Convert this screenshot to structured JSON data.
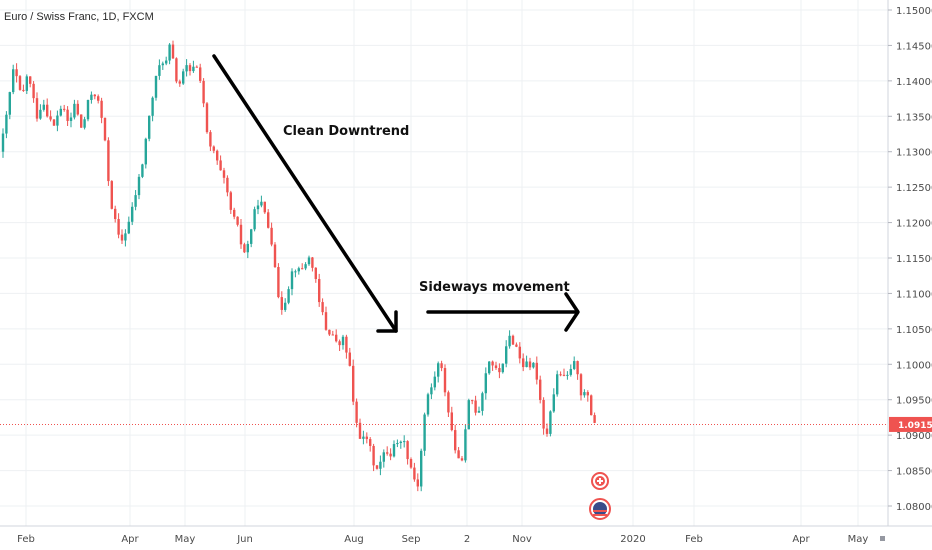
{
  "chart_data": {
    "type": "candlestick",
    "title": "Euro / Swiss Franc, 1D, FXCM",
    "y_ticks": [
      "1.15000",
      "1.14500",
      "1.14000",
      "1.13500",
      "1.13000",
      "1.12500",
      "1.12000",
      "1.11500",
      "1.11000",
      "1.10500",
      "1.10000",
      "1.09500",
      "1.09000",
      "1.08500",
      "1.08000"
    ],
    "ylim": [
      1.0775,
      1.1515
    ],
    "x_ticks": [
      "Feb",
      "Apr",
      "May",
      "Jun",
      "Aug",
      "Sep",
      "2",
      "Nov",
      "2020",
      "Feb",
      "Apr",
      "May"
    ],
    "current_price": "1.09151",
    "annotations": [
      "Clean Downtrend",
      "Sideways movement"
    ],
    "grid": true,
    "colors": {
      "up": "#26a69a",
      "down": "#ef5350",
      "price_line": "#ef5350",
      "grid": "#eef0f3",
      "axis": "#d1d4dc"
    },
    "close_path": [
      [
        0,
        1.13
      ],
      [
        5,
        1.1335
      ],
      [
        10,
        1.1385
      ],
      [
        14,
        1.142
      ],
      [
        18,
        1.1395
      ],
      [
        22,
        1.137
      ],
      [
        26,
        1.141
      ],
      [
        30,
        1.1395
      ],
      [
        34,
        1.137
      ],
      [
        38,
        1.1345
      ],
      [
        42,
        1.1375
      ],
      [
        46,
        1.136
      ],
      [
        50,
        1.1345
      ],
      [
        54,
        1.1335
      ],
      [
        58,
        1.1355
      ],
      [
        62,
        1.1365
      ],
      [
        66,
        1.1345
      ],
      [
        70,
        1.134
      ],
      [
        74,
        1.137
      ],
      [
        78,
        1.135
      ],
      [
        82,
        1.133
      ],
      [
        86,
        1.1355
      ],
      [
        90,
        1.138
      ],
      [
        94,
        1.1385
      ],
      [
        98,
        1.137
      ],
      [
        102,
        1.1345
      ],
      [
        106,
        1.13
      ],
      [
        110,
        1.1235
      ],
      [
        114,
        1.121
      ],
      [
        118,
        1.118
      ],
      [
        122,
        1.1175
      ],
      [
        126,
        1.119
      ],
      [
        130,
        1.1205
      ],
      [
        134,
        1.123
      ],
      [
        138,
        1.1255
      ],
      [
        142,
        1.128
      ],
      [
        146,
        1.132
      ],
      [
        150,
        1.1355
      ],
      [
        154,
        1.139
      ],
      [
        158,
        1.1415
      ],
      [
        162,
        1.143
      ],
      [
        166,
        1.1425
      ],
      [
        170,
        1.145
      ],
      [
        174,
        1.142
      ],
      [
        178,
        1.139
      ],
      [
        182,
        1.1405
      ],
      [
        186,
        1.142
      ],
      [
        190,
        1.141
      ],
      [
        194,
        1.1425
      ],
      [
        198,
        1.1415
      ],
      [
        202,
        1.1395
      ],
      [
        206,
        1.133
      ],
      [
        210,
        1.1305
      ],
      [
        214,
        1.13
      ],
      [
        218,
        1.128
      ],
      [
        222,
        1.1265
      ],
      [
        226,
        1.125
      ],
      [
        230,
        1.122
      ],
      [
        234,
        1.1205
      ],
      [
        238,
        1.119
      ],
      [
        242,
        1.1165
      ],
      [
        246,
        1.1155
      ],
      [
        250,
        1.1185
      ],
      [
        254,
        1.121
      ],
      [
        258,
        1.123
      ],
      [
        262,
        1.1225
      ],
      [
        266,
        1.1205
      ],
      [
        270,
        1.1185
      ],
      [
        274,
        1.116
      ],
      [
        278,
        1.109
      ],
      [
        282,
        1.108
      ],
      [
        286,
        1.1095
      ],
      [
        290,
        1.112
      ],
      [
        294,
        1.114
      ],
      [
        298,
        1.113
      ],
      [
        302,
        1.1135
      ],
      [
        306,
        1.1145
      ],
      [
        310,
        1.115
      ],
      [
        314,
        1.1135
      ],
      [
        318,
        1.109
      ],
      [
        322,
        1.1075
      ],
      [
        326,
        1.105
      ],
      [
        330,
        1.1045
      ],
      [
        334,
        1.104
      ],
      [
        338,
        1.102
      ],
      [
        342,
        1.104
      ],
      [
        346,
        1.102
      ],
      [
        350,
        1.0995
      ],
      [
        354,
        1.093
      ],
      [
        358,
        1.091
      ],
      [
        362,
        1.089
      ],
      [
        366,
        1.09
      ],
      [
        370,
        1.088
      ],
      [
        374,
        1.086
      ],
      [
        378,
        1.0855
      ],
      [
        382,
        1.0865
      ],
      [
        386,
        1.088
      ],
      [
        390,
        1.087
      ],
      [
        394,
        1.089
      ],
      [
        398,
        1.0885
      ],
      [
        402,
        1.09
      ],
      [
        406,
        1.088
      ],
      [
        410,
        1.086
      ],
      [
        414,
        1.084
      ],
      [
        418,
        1.083
      ],
      [
        422,
        1.089
      ],
      [
        426,
        1.095
      ],
      [
        430,
        1.096
      ],
      [
        434,
        1.098
      ],
      [
        438,
        1.1
      ],
      [
        442,
        1.099
      ],
      [
        446,
        1.0955
      ],
      [
        450,
        1.092
      ],
      [
        454,
        1.089
      ],
      [
        458,
        1.086
      ],
      [
        462,
        1.087
      ],
      [
        466,
        1.091
      ],
      [
        470,
        1.096
      ],
      [
        474,
        1.094
      ],
      [
        478,
        1.093
      ],
      [
        482,
        1.096
      ],
      [
        486,
        1.099
      ],
      [
        490,
        1.101
      ],
      [
        494,
        1.0995
      ],
      [
        498,
        1.0985
      ],
      [
        502,
        1.1
      ],
      [
        506,
        1.102
      ],
      [
        510,
        1.104
      ],
      [
        514,
        1.103
      ],
      [
        518,
        1.102
      ],
      [
        522,
        1.0995
      ],
      [
        526,
        1.101
      ],
      [
        530,
        1.099
      ],
      [
        534,
        1.1
      ],
      [
        538,
        1.0975
      ],
      [
        542,
        1.093
      ],
      [
        546,
        1.089
      ],
      [
        550,
        1.0935
      ],
      [
        554,
        1.096
      ],
      [
        558,
        1.099
      ],
      [
        562,
        1.0985
      ],
      [
        566,
        1.0975
      ],
      [
        570,
        1.0995
      ],
      [
        574,
        1.1
      ],
      [
        578,
        1.099
      ],
      [
        582,
        1.095
      ],
      [
        586,
        1.0965
      ],
      [
        590,
        1.0935
      ],
      [
        594,
        1.092
      ],
      [
        597,
        1.0915
      ]
    ]
  }
}
